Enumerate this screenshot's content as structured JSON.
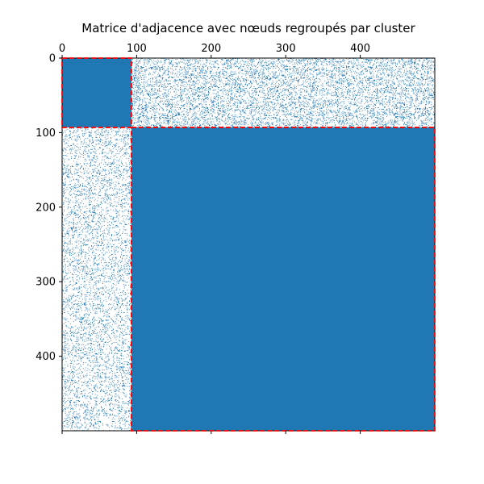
{
  "chart_data": {
    "type": "heatmap",
    "title": "Matrice d'adjacence avec nœuds regroupés par cluster",
    "xlabel": "",
    "ylabel": "",
    "n_nodes": 500,
    "xlim": [
      0,
      500
    ],
    "ylim": [
      500,
      0
    ],
    "x_axis_position": "top",
    "xticks": [
      0,
      100,
      200,
      300,
      400
    ],
    "yticks": [
      0,
      100,
      200,
      300,
      400
    ],
    "grid": false,
    "marker_color": "#1f77b4",
    "boundary_color": "#ff0000",
    "clusters": [
      {
        "start": 0,
        "end": 93
      },
      {
        "start": 93,
        "end": 500
      }
    ],
    "block_density": [
      [
        1.0,
        0.2
      ],
      [
        0.2,
        1.0
      ]
    ],
    "cluster_boundaries": [
      93
    ]
  }
}
